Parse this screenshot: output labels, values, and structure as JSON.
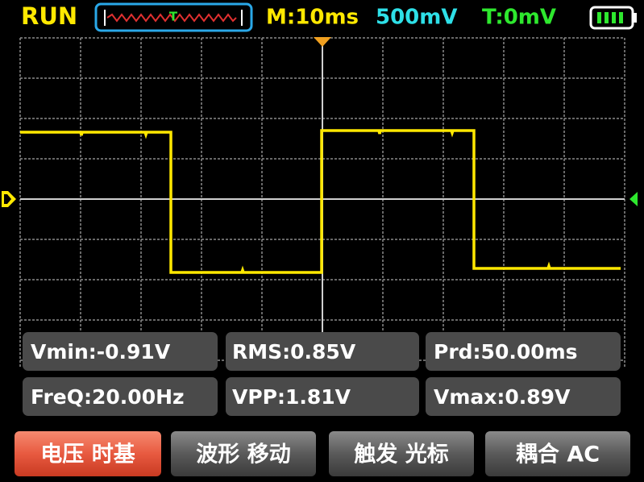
{
  "header": {
    "status": "RUN",
    "trigger_icon_label": "T",
    "timebase": "M:10ms",
    "volts_per_div": "500mV",
    "trigger_level": "T:0mV"
  },
  "measurements": [
    [
      "Vmin:-0.91V",
      "RMS:0.85V",
      "Prd:50.00ms"
    ],
    [
      "FreQ:20.00Hz",
      "VPP:1.81V",
      "Vmax:0.89V"
    ]
  ],
  "buttons": [
    "电压 时基",
    "波形 移动",
    "触发 光标",
    "耦合 AC"
  ]
}
